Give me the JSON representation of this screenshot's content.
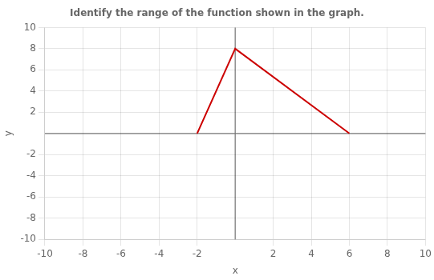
{
  "chart_data": {
    "type": "line",
    "title": "Identify the range of the function shown in the graph.",
    "x": [
      -2,
      0,
      6
    ],
    "values": [
      0,
      8,
      0
    ],
    "color": "#cc0000",
    "xlabel": "x",
    "ylabel": "y",
    "xlim": [
      -10,
      10
    ],
    "ylim": [
      -10,
      10
    ],
    "xticks": [
      -10,
      -8,
      -6,
      -4,
      -2,
      2,
      4,
      6,
      8,
      10
    ],
    "yticks": [
      -10,
      -8,
      -6,
      -4,
      -2,
      2,
      4,
      6,
      8,
      10
    ],
    "grid": true
  }
}
